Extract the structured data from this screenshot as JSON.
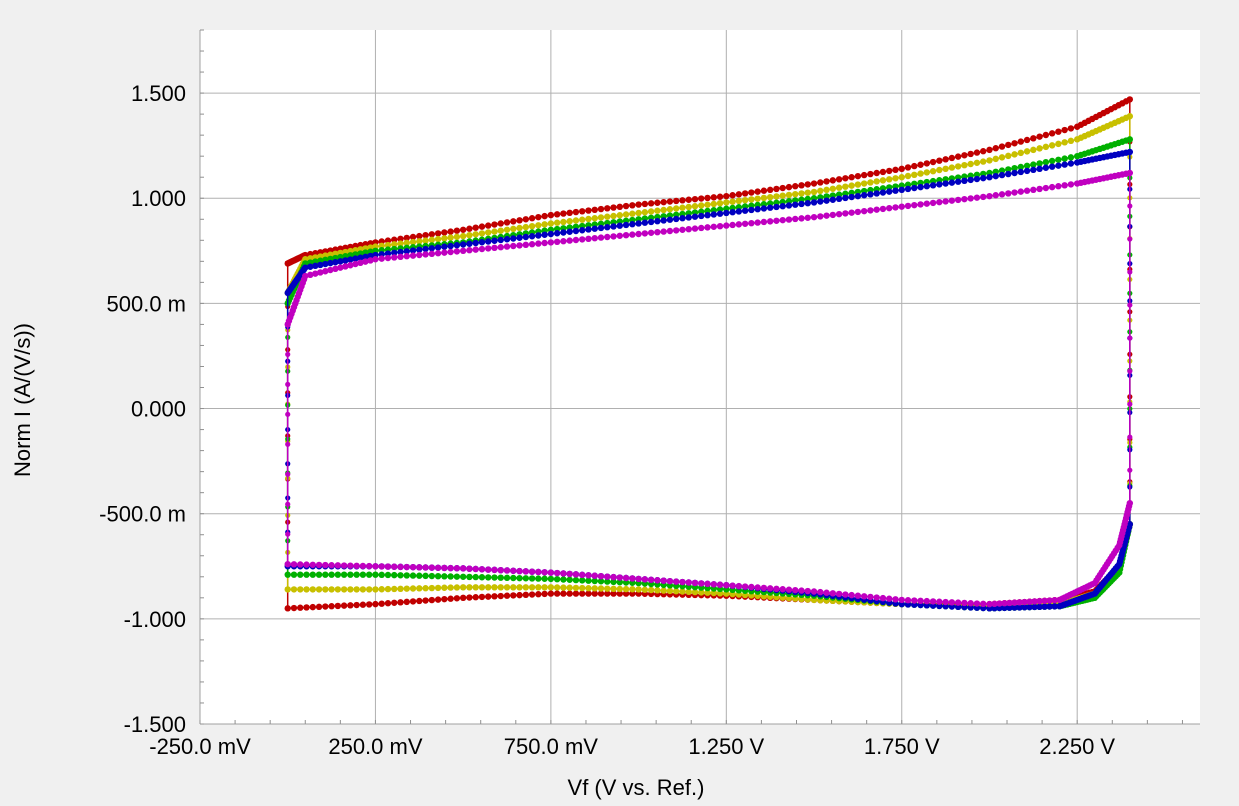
{
  "chart_data": {
    "type": "scatter",
    "title": "",
    "xlabel": "Vf (V vs. Ref.)",
    "ylabel": "Norm I (A/(V/s))",
    "xlim": [
      -0.25,
      2.6
    ],
    "ylim": [
      -1.5,
      1.8
    ],
    "x_ticks": [
      -0.25,
      0.25,
      0.75,
      1.25,
      1.75,
      2.25
    ],
    "x_tick_labels": [
      "-250.0 mV",
      "250.0 mV",
      "750.0 mV",
      "1.250 V",
      "1.750 V",
      "2.250 V"
    ],
    "y_ticks": [
      1.5,
      1.0,
      0.5,
      0.0,
      -0.5,
      -1.0,
      -1.5
    ],
    "y_tick_labels": [
      "1.500",
      "1.000",
      "500.0 m",
      "0.000",
      "-500.0 m",
      "-1.000",
      "-1.500"
    ],
    "grid": true,
    "legend": "none",
    "series": [
      {
        "color": "#c00000",
        "anodic": [
          [
            0.0,
            0.69
          ],
          [
            0.05,
            0.73
          ],
          [
            0.25,
            0.79
          ],
          [
            0.5,
            0.85
          ],
          [
            0.75,
            0.92
          ],
          [
            1.0,
            0.97
          ],
          [
            1.25,
            1.01
          ],
          [
            1.5,
            1.07
          ],
          [
            1.75,
            1.14
          ],
          [
            2.0,
            1.23
          ],
          [
            2.25,
            1.34
          ],
          [
            2.4,
            1.47
          ]
        ],
        "cathodic": [
          [
            2.4,
            -0.55
          ],
          [
            2.37,
            -0.75
          ],
          [
            2.3,
            -0.87
          ],
          [
            2.2,
            -0.91
          ],
          [
            2.0,
            -0.93
          ],
          [
            1.75,
            -0.93
          ],
          [
            1.5,
            -0.91
          ],
          [
            1.25,
            -0.89
          ],
          [
            1.0,
            -0.88
          ],
          [
            0.75,
            -0.88
          ],
          [
            0.5,
            -0.9
          ],
          [
            0.25,
            -0.93
          ],
          [
            0.0,
            -0.95
          ]
        ]
      },
      {
        "color": "#c8c000",
        "anodic": [
          [
            0.0,
            0.55
          ],
          [
            0.05,
            0.71
          ],
          [
            0.25,
            0.77
          ],
          [
            0.5,
            0.82
          ],
          [
            0.75,
            0.88
          ],
          [
            1.0,
            0.93
          ],
          [
            1.25,
            0.98
          ],
          [
            1.5,
            1.03
          ],
          [
            1.75,
            1.1
          ],
          [
            2.0,
            1.18
          ],
          [
            2.25,
            1.28
          ],
          [
            2.4,
            1.39
          ]
        ],
        "cathodic": [
          [
            2.4,
            -0.55
          ],
          [
            2.37,
            -0.76
          ],
          [
            2.3,
            -0.88
          ],
          [
            2.2,
            -0.93
          ],
          [
            2.0,
            -0.94
          ],
          [
            1.75,
            -0.93
          ],
          [
            1.5,
            -0.91
          ],
          [
            1.25,
            -0.88
          ],
          [
            1.0,
            -0.86
          ],
          [
            0.75,
            -0.85
          ],
          [
            0.5,
            -0.85
          ],
          [
            0.25,
            -0.86
          ],
          [
            0.0,
            -0.86
          ]
        ]
      },
      {
        "color": "#00b000",
        "anodic": [
          [
            0.0,
            0.5
          ],
          [
            0.05,
            0.69
          ],
          [
            0.25,
            0.75
          ],
          [
            0.5,
            0.79
          ],
          [
            0.75,
            0.85
          ],
          [
            1.0,
            0.9
          ],
          [
            1.25,
            0.95
          ],
          [
            1.5,
            1.0
          ],
          [
            1.75,
            1.06
          ],
          [
            2.0,
            1.12
          ],
          [
            2.25,
            1.2
          ],
          [
            2.4,
            1.28
          ]
        ],
        "cathodic": [
          [
            2.4,
            -0.55
          ],
          [
            2.37,
            -0.78
          ],
          [
            2.3,
            -0.9
          ],
          [
            2.2,
            -0.94
          ],
          [
            2.0,
            -0.95
          ],
          [
            1.75,
            -0.93
          ],
          [
            1.5,
            -0.89
          ],
          [
            1.25,
            -0.86
          ],
          [
            1.0,
            -0.83
          ],
          [
            0.75,
            -0.81
          ],
          [
            0.5,
            -0.8
          ],
          [
            0.25,
            -0.79
          ],
          [
            0.0,
            -0.79
          ]
        ]
      },
      {
        "color": "#0000c0",
        "anodic": [
          [
            0.0,
            0.55
          ],
          [
            0.05,
            0.67
          ],
          [
            0.25,
            0.73
          ],
          [
            0.5,
            0.78
          ],
          [
            0.75,
            0.83
          ],
          [
            1.0,
            0.88
          ],
          [
            1.25,
            0.93
          ],
          [
            1.5,
            0.98
          ],
          [
            1.75,
            1.04
          ],
          [
            2.0,
            1.1
          ],
          [
            2.25,
            1.17
          ],
          [
            2.4,
            1.22
          ]
        ],
        "cathodic": [
          [
            2.4,
            -0.55
          ],
          [
            2.37,
            -0.74
          ],
          [
            2.3,
            -0.88
          ],
          [
            2.2,
            -0.94
          ],
          [
            2.0,
            -0.95
          ],
          [
            1.75,
            -0.93
          ],
          [
            1.5,
            -0.88
          ],
          [
            1.25,
            -0.84
          ],
          [
            1.0,
            -0.81
          ],
          [
            0.75,
            -0.78
          ],
          [
            0.5,
            -0.76
          ],
          [
            0.25,
            -0.75
          ],
          [
            0.0,
            -0.75
          ]
        ]
      },
      {
        "color": "#c000c0",
        "anodic": [
          [
            0.0,
            0.4
          ],
          [
            0.05,
            0.63
          ],
          [
            0.25,
            0.71
          ],
          [
            0.5,
            0.75
          ],
          [
            0.75,
            0.79
          ],
          [
            1.0,
            0.83
          ],
          [
            1.25,
            0.87
          ],
          [
            1.5,
            0.91
          ],
          [
            1.75,
            0.96
          ],
          [
            2.0,
            1.01
          ],
          [
            2.25,
            1.07
          ],
          [
            2.4,
            1.12
          ]
        ],
        "cathodic": [
          [
            2.4,
            -0.45
          ],
          [
            2.37,
            -0.65
          ],
          [
            2.3,
            -0.83
          ],
          [
            2.2,
            -0.91
          ],
          [
            2.0,
            -0.93
          ],
          [
            1.75,
            -0.91
          ],
          [
            1.5,
            -0.87
          ],
          [
            1.25,
            -0.84
          ],
          [
            1.0,
            -0.81
          ],
          [
            0.75,
            -0.78
          ],
          [
            0.5,
            -0.76
          ],
          [
            0.25,
            -0.75
          ],
          [
            0.0,
            -0.74
          ]
        ]
      }
    ]
  }
}
